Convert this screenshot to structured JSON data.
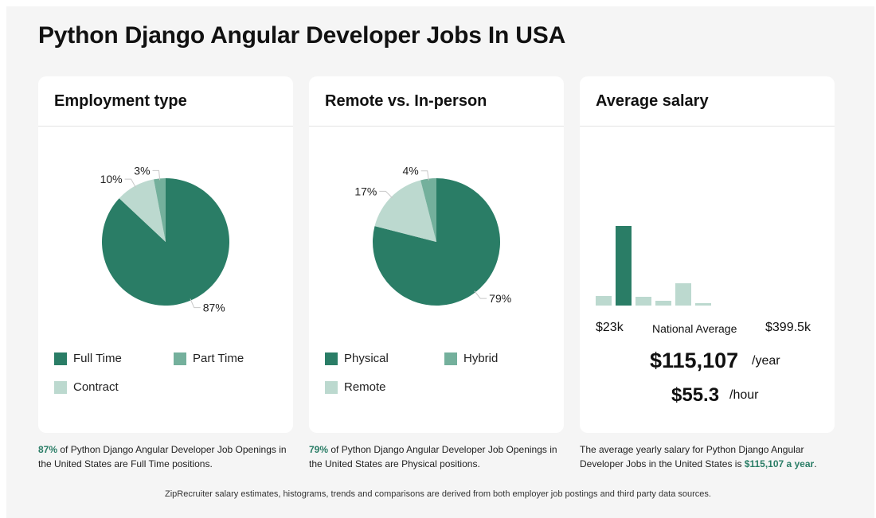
{
  "page": {
    "title": "Python Django Angular Developer Jobs In USA",
    "footer": "ZipRecruiter salary estimates, histograms, trends and comparisons are derived from both employer job postings and third party data sources."
  },
  "colors": {
    "primary": "#2a7d66",
    "secondary": "#74b09c",
    "tertiary": "#bcd9cf"
  },
  "employment": {
    "title": "Employment type",
    "caption_highlight": "87%",
    "caption_rest": " of Python Django Angular Developer Job Openings in the United States are Full Time positions.",
    "legend": [
      "Full Time",
      "Part Time",
      "Contract"
    ]
  },
  "remote": {
    "title": "Remote vs. In-person",
    "caption_highlight": "79%",
    "caption_rest": " of Python Django Angular Developer Job Openings in the United States are Physical positions.",
    "legend": [
      "Physical",
      "Hybrid",
      "Remote"
    ]
  },
  "salary": {
    "title": "Average salary",
    "min_label": "$23k",
    "max_label": "$399.5k",
    "national_label": "National Average",
    "yearly": "$115,107",
    "yearly_unit": "/year",
    "hourly": "$55.3",
    "hourly_unit": "/hour",
    "caption_pre": "The average yearly salary for Python Django Angular Developer Jobs in the United States is ",
    "caption_highlight": "$115,107 a year",
    "caption_post": "."
  },
  "chart_data": [
    {
      "type": "pie",
      "title": "Employment type",
      "labels": [
        "Full Time",
        "Part Time",
        "Contract"
      ],
      "values": [
        87,
        3,
        10
      ],
      "value_labels": [
        "87%",
        "3%",
        "10%"
      ],
      "colors": [
        "#2a7d66",
        "#74b09c",
        "#bcd9cf"
      ]
    },
    {
      "type": "pie",
      "title": "Remote vs. In-person",
      "labels": [
        "Physical",
        "Hybrid",
        "Remote"
      ],
      "values": [
        79,
        4,
        17
      ],
      "value_labels": [
        "79%",
        "4%",
        "17%"
      ],
      "colors": [
        "#2a7d66",
        "#74b09c",
        "#bcd9cf"
      ]
    },
    {
      "type": "bar",
      "title": "Average salary",
      "values": [
        12,
        100,
        11,
        6,
        28,
        3
      ],
      "highlight_index": 1,
      "x_range_labels": [
        "$23k",
        "$399.5k"
      ]
    }
  ]
}
